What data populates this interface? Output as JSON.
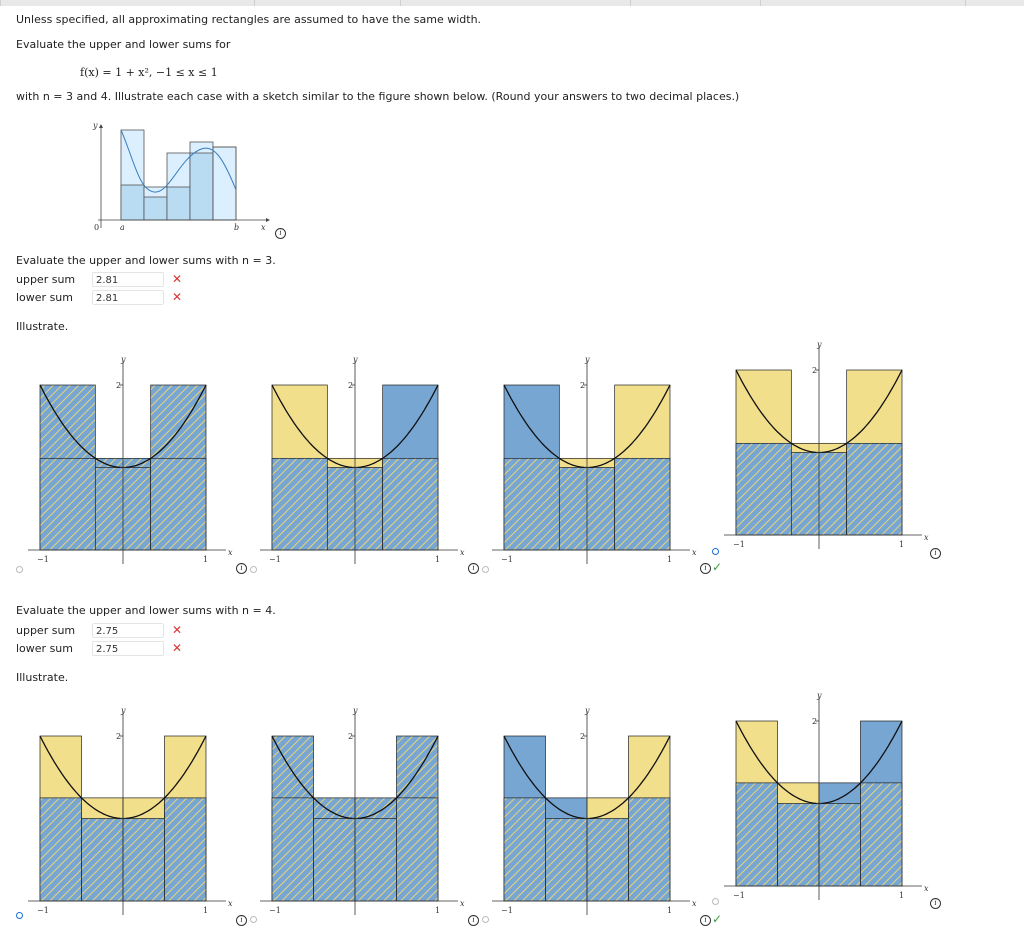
{
  "intro": {
    "line1": "Unless specified, all approximating rectangles are assumed to have the same width.",
    "line2": "Evaluate the upper and lower sums for",
    "formula": "f(x) = 1 + x², −1 ≤ x ≤ 1",
    "line3": "with n = 3 and 4. Illustrate each case with a sketch similar to the figure shown below. (Round your answers to two decimal places.)"
  },
  "sample_figure": {
    "y_label": "y",
    "zero_label": "0",
    "a_label": "a",
    "b_label": "b",
    "x_label": "x"
  },
  "part_n3": {
    "prompt": "Evaluate the upper and lower sums with n = 3.",
    "upper_label": "upper sum",
    "upper_value": "2.81",
    "lower_label": "lower sum",
    "lower_value": "2.81",
    "illustrate": "Illustrate."
  },
  "part_n4": {
    "prompt": "Evaluate the upper and lower sums with n = 4.",
    "upper_label": "upper sum",
    "upper_value": "2.75",
    "lower_label": "lower sum",
    "lower_value": "2.75",
    "illustrate": "Illustrate."
  },
  "axis_text": {
    "y": "y",
    "x": "x",
    "two": "2",
    "one": "1",
    "minus_one": "−1"
  },
  "colors": {
    "yellow": "#f2df8c",
    "blue": "#77a6d3",
    "hatch": "#e7d37c",
    "sample_fill": "#b9dcf3",
    "sample_light": "#dcefff",
    "error": "#dd3333",
    "ok": "#3a9a3a"
  },
  "chart_data": [
    {
      "type": "area",
      "name": "n3-option-1",
      "n": 3,
      "function": "1+x^2",
      "x_range": [
        -1,
        1
      ],
      "y_range": [
        0,
        2
      ],
      "upper": [
        "blue-hatched",
        "blue-hatched",
        "blue-hatched"
      ],
      "lower": [
        "blue-hatched",
        "blue-hatched",
        "blue-hatched"
      ],
      "selected": false,
      "correct": null
    },
    {
      "type": "area",
      "name": "n3-option-2",
      "n": 3,
      "function": "1+x^2",
      "x_range": [
        -1,
        1
      ],
      "y_range": [
        0,
        2
      ],
      "upper": [
        "yellow",
        "yellow",
        "blue"
      ],
      "lower": [
        "blue-hatched",
        "blue-hatched",
        "blue-hatched"
      ],
      "selected": false,
      "correct": null
    },
    {
      "type": "area",
      "name": "n3-option-3",
      "n": 3,
      "function": "1+x^2",
      "x_range": [
        -1,
        1
      ],
      "y_range": [
        0,
        2
      ],
      "upper": [
        "blue",
        "yellow",
        "yellow"
      ],
      "lower": [
        "blue-hatched",
        "blue-hatched",
        "blue-hatched"
      ],
      "selected": false,
      "correct": null
    },
    {
      "type": "area",
      "name": "n3-option-4",
      "n": 3,
      "function": "1+x^2",
      "x_range": [
        -1,
        1
      ],
      "y_range": [
        0,
        2
      ],
      "upper": [
        "yellow",
        "yellow",
        "yellow"
      ],
      "lower": [
        "blue-hatched",
        "blue-hatched",
        "blue-hatched"
      ],
      "selected": true,
      "correct": true
    },
    {
      "type": "area",
      "name": "n4-option-1",
      "n": 4,
      "function": "1+x^2",
      "x_range": [
        -1,
        1
      ],
      "y_range": [
        0,
        2
      ],
      "upper": [
        "yellow",
        "yellow",
        "yellow",
        "yellow"
      ],
      "lower": [
        "blue-hatched",
        "blue-hatched",
        "blue-hatched",
        "blue-hatched"
      ],
      "selected": true,
      "correct": null
    },
    {
      "type": "area",
      "name": "n4-option-2",
      "n": 4,
      "function": "1+x^2",
      "x_range": [
        -1,
        1
      ],
      "y_range": [
        0,
        2
      ],
      "upper": [
        "blue-hatched",
        "blue-hatched",
        "blue-hatched",
        "blue-hatched"
      ],
      "lower": [
        "blue-hatched",
        "blue-hatched",
        "blue-hatched",
        "blue-hatched"
      ],
      "selected": false,
      "correct": null
    },
    {
      "type": "area",
      "name": "n4-option-3",
      "n": 4,
      "function": "1+x^2",
      "x_range": [
        -1,
        1
      ],
      "y_range": [
        0,
        2
      ],
      "upper": [
        "blue",
        "blue",
        "yellow",
        "yellow"
      ],
      "lower": [
        "blue-hatched",
        "blue-hatched",
        "blue-hatched",
        "blue-hatched"
      ],
      "selected": false,
      "correct": true
    },
    {
      "type": "area",
      "name": "n4-option-4",
      "n": 4,
      "function": "1+x^2",
      "x_range": [
        -1,
        1
      ],
      "y_range": [
        0,
        2
      ],
      "upper": [
        "yellow",
        "yellow",
        "blue",
        "blue"
      ],
      "lower": [
        "blue-hatched",
        "blue-hatched",
        "blue-hatched",
        "blue-hatched"
      ],
      "selected": false,
      "correct": null
    }
  ]
}
